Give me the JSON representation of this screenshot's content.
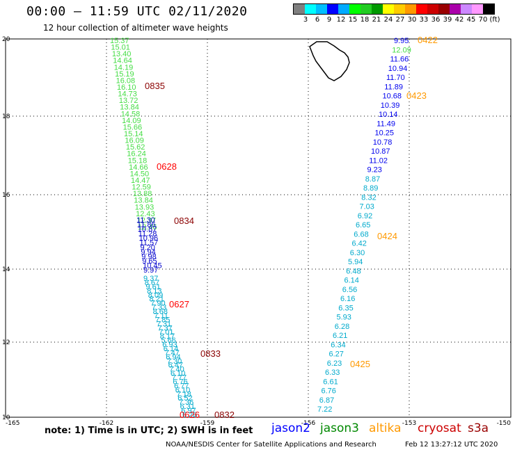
{
  "header": {
    "title": "00:00 – 11:59 UTC 02/11/2020",
    "subtitle": "12 hour collection of altimeter wave heights"
  },
  "legend": {
    "colors": [
      "#7f7f7f",
      "#00ffff",
      "#00bfff",
      "#0000ff",
      "#00aaff",
      "#00ff00",
      "#22cc22",
      "#009900",
      "#ffff00",
      "#ffcc00",
      "#ff9900",
      "#ff0000",
      "#cc0000",
      "#990000",
      "#aa00aa",
      "#cc88ff",
      "#ff99ff",
      "#000000"
    ],
    "labels": [
      "3",
      "6",
      "9",
      "12",
      "15",
      "18",
      "21",
      "24",
      "27",
      "30",
      "33",
      "36",
      "39",
      "42",
      "45",
      "70"
    ],
    "unit": "(ft)"
  },
  "axes": {
    "lon_ticks": [
      "-165",
      "-162",
      "-159",
      "-156",
      "-153",
      "-150"
    ],
    "lat_ticks": [
      "20",
      "18",
      "16",
      "14",
      "12",
      "10"
    ]
  },
  "tracks": {
    "green_track": [
      "15.37",
      "15.01",
      "13.40",
      "14.64",
      "14.19",
      "15.19",
      "16.08",
      "16.10",
      "14.73",
      "13.72",
      "13.84",
      "14.58",
      "14.09",
      "15.66",
      "15.14",
      "16.09",
      "15.62",
      "16.24",
      "15.18",
      "14.66",
      "14.50",
      "14.47",
      "12.59",
      "13.88",
      "13.84",
      "13.93",
      "12.43",
      "12.37",
      "12.46"
    ],
    "blue_track_a": [
      "11.30",
      "11.86",
      "10.87",
      "11.28",
      "10.96",
      "11.57",
      "9.20",
      "9.94",
      "9.98",
      "9.65",
      "10.45",
      "9.97"
    ],
    "cyan_track_a": [
      "9.37",
      "8.67",
      "9.61",
      "8.13",
      "8.09",
      "8.21",
      "7.90",
      "7.33",
      "8.68",
      "7.11",
      "7.85",
      "7.31",
      "7.37",
      "7.01",
      "8.17",
      "5.66",
      "6.93",
      "6.14",
      "7.47",
      "6.94",
      "7.30",
      "6.47",
      "7.40",
      "6.10",
      "7.77",
      "6.76",
      "6.77",
      "6.10",
      "7.18",
      "6.52",
      "7.36",
      "6.31",
      "6.97",
      "6.26"
    ],
    "east_track": [
      "9.95",
      "12.09",
      "11.66",
      "10.94",
      "11.70",
      "11.89",
      "10.68",
      "10.39",
      "10.14",
      "11.49",
      "10.25",
      "10.78",
      "10.87",
      "11.02",
      "9.23",
      "8.87",
      "8.89",
      "8.32",
      "7.03",
      "6.92",
      "6.65",
      "6.68",
      "6.42",
      "6.30",
      "5.94",
      "6.48",
      "6.14",
      "6.56",
      "6.16",
      "6.35",
      "5.93",
      "6.28",
      "6.21",
      "6.34",
      "6.27",
      "6.23",
      "6.33",
      "6.61",
      "6.76",
      "6.87",
      "7.22"
    ]
  },
  "time_labels": [
    "0835",
    "0628",
    "0834",
    "0627",
    "0833",
    "0626",
    "0832",
    "0422",
    "0423",
    "0424",
    "0425"
  ],
  "footer": {
    "note": "note: 1) Time is in UTC; 2) SWH is in feet",
    "satellites": [
      "jason2",
      "jason3",
      "altika",
      "cryosat",
      "s3a"
    ],
    "credit": "NOAA/NESDIS Center for Satellite Applications and Research",
    "timestamp": "Feb 12 13:27:12 UTC 2020"
  }
}
